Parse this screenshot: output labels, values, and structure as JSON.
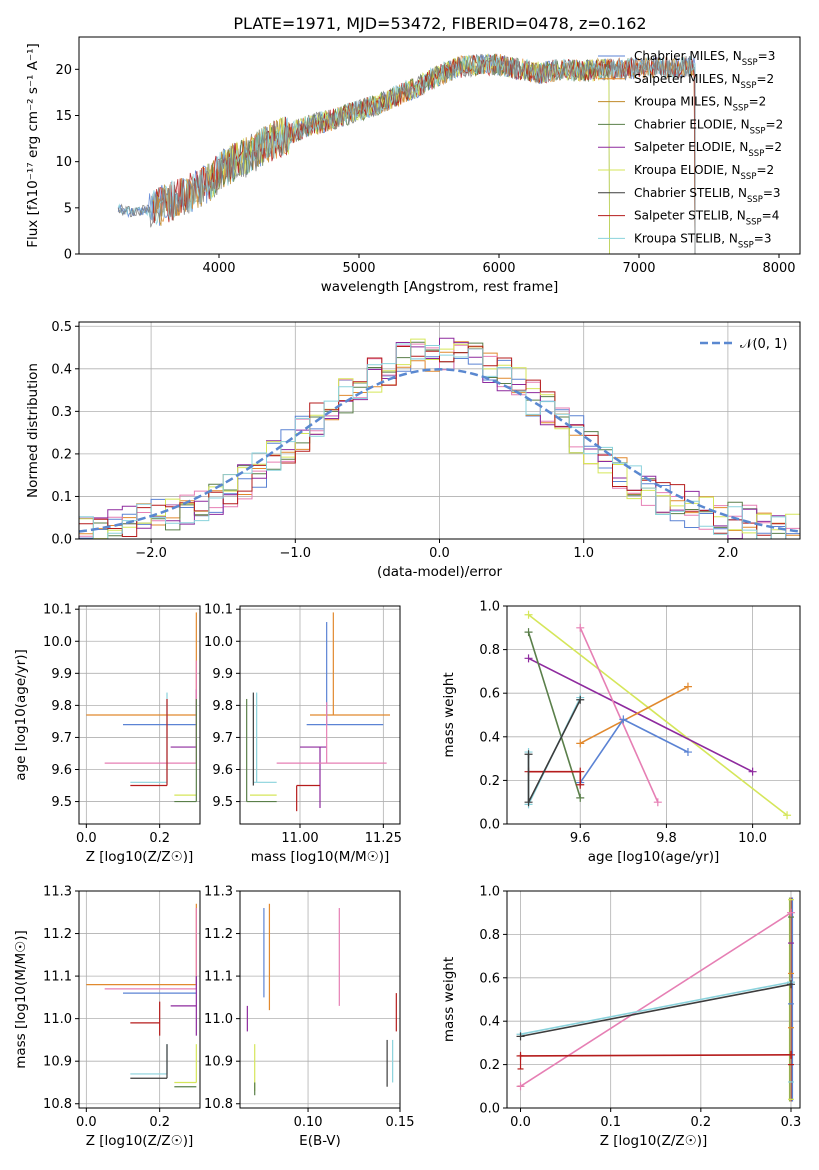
{
  "title": "PLATE=1971, MJD=53472, FIBERID=0478, z=0.162",
  "colors": {
    "Chabrier MILES": "#5b83d4",
    "Salpeter MILES": "#e1892e",
    "Kroupa MILES": "#c08a2a",
    "Chabrier ELODIE": "#5a7f4a",
    "Salpeter ELODIE": "#8e2a9e",
    "Kroupa ELODIE": "#d5e65a",
    "Chabrier STELIB": "#3c3c3c",
    "Salpeter STELIB": "#b51c1c",
    "Kroupa STELIB": "#8ad2dc",
    "pink": "#e67fb4",
    "normal": "#5a88d0",
    "gray": "#808080"
  },
  "chart_data": [
    {
      "type": "line",
      "name": "spectrum",
      "xlabel": "wavelength [Angstrom, rest frame]",
      "ylabel": "Flux [fλ10⁻¹⁷ erg cm⁻² s⁻¹ A⁻¹]",
      "xlim": [
        3000,
        8150
      ],
      "ylim": [
        0,
        23.5
      ],
      "xticks": [
        4000,
        5000,
        6000,
        7000,
        8000
      ],
      "yticks": [
        0,
        5,
        10,
        15,
        20
      ],
      "legend": [
        "Chabrier MILES, N_SSP=3",
        "Salpeter MILES, N_SSP=2",
        "Kroupa MILES, N_SSP=2",
        "Chabrier ELODIE, N_SSP=2",
        "Salpeter ELODIE, N_SSP=2",
        "Kroupa ELODIE, N_SSP=2",
        "Chabrier STELIB, N_SSP=3",
        "Salpeter STELIB, N_SSP=4",
        "Kroupa STELIB, N_SSP=3"
      ],
      "legend_position": "top-right",
      "continuum": [
        [
          3280,
          4.8
        ],
        [
          3400,
          4.5
        ],
        [
          3550,
          5.0
        ],
        [
          3700,
          6.0
        ],
        [
          3850,
          7.0
        ],
        [
          3950,
          8.0
        ],
        [
          4050,
          9.5
        ],
        [
          4200,
          10.5
        ],
        [
          4350,
          12.0
        ],
        [
          4500,
          13.0
        ],
        [
          4650,
          14.0
        ],
        [
          4800,
          14.5
        ],
        [
          4950,
          15.3
        ],
        [
          5100,
          16.0
        ],
        [
          5250,
          17.0
        ],
        [
          5400,
          18.0
        ],
        [
          5550,
          19.2
        ],
        [
          5700,
          20.2
        ],
        [
          5850,
          20.5
        ],
        [
          6000,
          20.5
        ],
        [
          6150,
          20.0
        ],
        [
          6300,
          19.6
        ],
        [
          6450,
          20.0
        ],
        [
          6600,
          19.8
        ],
        [
          6750,
          20.0
        ],
        [
          6900,
          20.0
        ],
        [
          7050,
          20.3
        ],
        [
          7200,
          20.2
        ],
        [
          7350,
          20.3
        ]
      ]
    },
    {
      "type": "bar",
      "name": "residual histogram",
      "xlabel": "(data-model)/error",
      "ylabel": "Normed distribution",
      "xlim": [
        -2.5,
        2.5
      ],
      "ylim": [
        0,
        0.51
      ],
      "xticks": [
        -2,
        -1,
        0,
        1,
        2
      ],
      "yticks": [
        0.0,
        0.1,
        0.2,
        0.3,
        0.4,
        0.5
      ],
      "legend": [
        "𝒩(0, 1)"
      ],
      "legend_position": "top-right",
      "bin_width": 0.1,
      "bin_start": -2.5,
      "series_colors": [
        "Chabrier MILES",
        "Salpeter MILES",
        "pink",
        "Chabrier ELODIE",
        "Salpeter ELODIE",
        "Kroupa ELODIE",
        "Salpeter STELIB",
        "Kroupa STELIB"
      ]
    },
    {
      "type": "scatter",
      "name": "age vs Z",
      "xlabel": "Z [log10(Z/Z☉)]",
      "ylabel": "age [log10(age/yr)]",
      "xlim": [
        -0.02,
        0.31
      ],
      "ylim": [
        9.43,
        10.11
      ],
      "xticks": [
        0.0,
        0.2
      ],
      "yticks": [
        9.5,
        9.6,
        9.7,
        9.8,
        9.9,
        10.0,
        10.1
      ],
      "points": [
        {
          "c": "Salpeter MILES",
          "x": 0.3,
          "y": 9.77,
          "xl": 0.0,
          "yl": 9.77,
          "yh": 10.09
        },
        {
          "c": "Chabrier MILES",
          "x": 0.3,
          "y": 9.74,
          "xl": 0.1,
          "yl": 9.74,
          "yh": 9.74
        },
        {
          "c": "Salpeter ELODIE",
          "x": 0.3,
          "y": 9.67,
          "xl": 0.23,
          "yl": 9.67,
          "yh": 9.85
        },
        {
          "c": "pink",
          "x": 0.3,
          "y": 9.62,
          "xl": 0.05,
          "yl": 9.62,
          "yh": 9.94
        },
        {
          "c": "Kroupa STELIB",
          "x": 0.22,
          "y": 9.56,
          "xl": 0.12,
          "yl": 9.56,
          "yh": 9.84
        },
        {
          "c": "Salpeter STELIB",
          "x": 0.22,
          "y": 9.55,
          "xl": 0.12,
          "yl": 9.55,
          "yh": 9.82
        },
        {
          "c": "Kroupa ELODIE",
          "x": 0.3,
          "y": 9.52,
          "xl": 0.24,
          "yl": 9.52,
          "yh": 9.52
        },
        {
          "c": "Chabrier ELODIE",
          "x": 0.3,
          "y": 9.5,
          "xl": 0.24,
          "yl": 9.5,
          "yh": 9.82
        }
      ]
    },
    {
      "type": "scatter",
      "name": "age vs mass",
      "xlabel": "mass [log10(M/M☉)]",
      "ylabel": "",
      "xlim": [
        10.82,
        11.3
      ],
      "ylim": [
        9.43,
        10.11
      ],
      "xticks": [
        11.0,
        11.25
      ],
      "yticks": [
        9.5,
        9.6,
        9.7,
        9.8,
        9.9,
        10.0,
        10.1
      ],
      "points": [
        {
          "c": "Salpeter MILES",
          "x": 11.1,
          "y": 9.77,
          "xl": 11.03,
          "xh": 11.27,
          "yl": 9.77,
          "yh": 10.09
        },
        {
          "c": "Chabrier MILES",
          "x": 11.08,
          "y": 9.74,
          "xl": 11.02,
          "xh": 11.25,
          "yl": 9.74,
          "yh": 10.06
        },
        {
          "c": "Salpeter ELODIE",
          "x": 11.06,
          "y": 9.67,
          "xl": 11.0,
          "xh": 11.08,
          "yl": 9.48,
          "yh": 9.67
        },
        {
          "c": "pink",
          "x": 11.08,
          "y": 9.62,
          "xl": 10.93,
          "xh": 11.26,
          "yl": 9.62,
          "yh": 9.81
        },
        {
          "c": "Kroupa STELIB",
          "x": 10.87,
          "y": 9.56,
          "xl": 10.86,
          "xh": 10.93,
          "yl": 9.56,
          "yh": 9.84
        },
        {
          "c": "Salpeter STELIB",
          "x": 10.99,
          "y": 9.55,
          "xl": 10.99,
          "xh": 11.06,
          "yl": 9.47,
          "yh": 9.55
        },
        {
          "c": "Kroupa ELODIE",
          "x": 10.85,
          "y": 9.52,
          "xl": 10.85,
          "xh": 10.93,
          "yl": 9.52,
          "yh": 9.52
        },
        {
          "c": "Chabrier ELODIE",
          "x": 10.84,
          "y": 9.5,
          "xl": 10.84,
          "xh": 10.93,
          "yl": 9.5,
          "yh": 9.82
        },
        {
          "c": "Chabrier STELIB",
          "x": 10.86,
          "y": 9.84,
          "xl": 10.86,
          "xh": 10.86,
          "yl": 9.55,
          "yh": 9.84
        }
      ]
    },
    {
      "type": "line",
      "name": "mass weight vs age",
      "xlabel": "age [log10(age/yr)]",
      "ylabel": "mass weight",
      "xlim": [
        9.43,
        10.11
      ],
      "ylim": [
        0.0,
        1.0
      ],
      "xticks": [
        9.6,
        9.8,
        10.0
      ],
      "yticks": [
        0.0,
        0.2,
        0.4,
        0.6,
        0.8,
        1.0
      ],
      "series": [
        {
          "c": "Kroupa ELODIE",
          "pts": [
            [
              9.48,
              0.96
            ],
            [
              10.08,
              0.04
            ]
          ]
        },
        {
          "c": "Salpeter ELODIE",
          "pts": [
            [
              9.48,
              0.76
            ],
            [
              10.0,
              0.24
            ]
          ]
        },
        {
          "c": "Chabrier ELODIE",
          "pts": [
            [
              9.48,
              0.88
            ],
            [
              9.6,
              0.12
            ]
          ]
        },
        {
          "c": "pink",
          "pts": [
            [
              9.6,
              0.9
            ],
            [
              9.78,
              0.1
            ]
          ]
        },
        {
          "c": "Salpeter MILES",
          "pts": [
            [
              9.6,
              0.37
            ],
            [
              9.85,
              0.63
            ]
          ]
        },
        {
          "c": "Chabrier MILES",
          "pts": [
            [
              9.6,
              0.19
            ],
            [
              9.7,
              0.48
            ],
            [
              9.85,
              0.33
            ]
          ]
        },
        {
          "c": "Kroupa STELIB",
          "pts": [
            [
              9.48,
              0.33
            ],
            [
              9.48,
              0.09
            ],
            [
              9.6,
              0.58
            ]
          ]
        },
        {
          "c": "Salpeter STELIB",
          "pts": [
            [
              9.48,
              0.24
            ],
            [
              9.6,
              0.24
            ],
            [
              9.6,
              0.18
            ]
          ]
        },
        {
          "c": "Chabrier STELIB",
          "pts": [
            [
              9.48,
              0.32
            ],
            [
              9.48,
              0.1
            ],
            [
              9.6,
              0.57
            ]
          ]
        }
      ]
    },
    {
      "type": "scatter",
      "name": "mass vs Z",
      "xlabel": "Z [log10(Z/Z☉)]",
      "ylabel": "mass [log10(M/M☉)]",
      "xlim": [
        -0.02,
        0.31
      ],
      "ylim": [
        10.79,
        11.3
      ],
      "xticks": [
        0.0,
        0.2
      ],
      "yticks": [
        10.8,
        10.9,
        11.0,
        11.1,
        11.2,
        11.3
      ],
      "points": [
        {
          "c": "Salpeter MILES",
          "x": 0.3,
          "y": 11.08,
          "xl": 0.0,
          "yl": 11.08,
          "yh": 11.27
        },
        {
          "c": "pink",
          "x": 0.3,
          "y": 11.07,
          "xl": 0.05,
          "yl": 11.07,
          "yh": 11.26
        },
        {
          "c": "Chabrier MILES",
          "x": 0.3,
          "y": 11.06,
          "xl": 0.1,
          "yl": 11.06,
          "yh": 11.06
        },
        {
          "c": "Salpeter ELODIE",
          "x": 0.3,
          "y": 11.03,
          "xl": 0.23,
          "yl": 10.96,
          "yh": 11.1
        },
        {
          "c": "Salpeter STELIB",
          "x": 0.2,
          "y": 10.99,
          "xl": 0.12,
          "yl": 10.96,
          "yh": 11.04
        },
        {
          "c": "Kroupa STELIB",
          "x": 0.22,
          "y": 10.87,
          "xl": 0.12,
          "yl": 10.87,
          "yh": 10.94
        },
        {
          "c": "Chabrier STELIB",
          "x": 0.22,
          "y": 10.86,
          "xl": 0.12,
          "yl": 10.86,
          "yh": 10.94
        },
        {
          "c": "Kroupa ELODIE",
          "x": 0.3,
          "y": 10.85,
          "xl": 0.24,
          "yl": 10.85,
          "yh": 10.94
        },
        {
          "c": "Chabrier ELODIE",
          "x": 0.3,
          "y": 10.84,
          "xl": 0.24,
          "yl": 10.84,
          "yh": 10.84
        }
      ]
    },
    {
      "type": "scatter",
      "name": "mass vs E(B-V)",
      "xlabel": "E(B-V)",
      "ylabel": "",
      "xlim": [
        0.063,
        0.15
      ],
      "ylim": [
        10.79,
        11.3
      ],
      "xticks": [
        0.05,
        0.1,
        0.15
      ],
      "yticks": [
        10.8,
        10.9,
        11.0,
        11.1,
        11.2,
        11.3
      ],
      "points": [
        {
          "c": "Chabrier MILES",
          "x": 0.076,
          "yl": 11.05,
          "yh": 11.26
        },
        {
          "c": "Salpeter MILES",
          "x": 0.079,
          "yl": 11.02,
          "yh": 11.27
        },
        {
          "c": "pink",
          "x": 0.117,
          "yl": 11.03,
          "yh": 11.26
        },
        {
          "c": "Salpeter ELODIE",
          "x": 0.067,
          "yl": 10.97,
          "yh": 11.03
        },
        {
          "c": "Kroupa ELODIE",
          "x": 0.071,
          "yl": 10.83,
          "yh": 10.94
        },
        {
          "c": "Chabrier ELODIE",
          "x": 0.071,
          "yl": 10.82,
          "yh": 10.85
        },
        {
          "c": "Chabrier STELIB",
          "x": 0.143,
          "yl": 10.84,
          "yh": 10.95
        },
        {
          "c": "Kroupa STELIB",
          "x": 0.146,
          "yl": 10.85,
          "yh": 10.95
        },
        {
          "c": "Salpeter STELIB",
          "x": 0.148,
          "yl": 10.97,
          "yh": 11.06
        }
      ]
    },
    {
      "type": "line",
      "name": "mass weight vs Z",
      "xlabel": "Z [log10(Z/Z☉)]",
      "ylabel": "mass weight",
      "xlim": [
        -0.015,
        0.31
      ],
      "ylim": [
        0.0,
        1.0
      ],
      "xticks": [
        0.0,
        0.1,
        0.2,
        0.3
      ],
      "yticks": [
        0.0,
        0.2,
        0.4,
        0.6,
        0.8,
        1.0
      ],
      "series": [
        {
          "c": "pink",
          "pts": [
            [
              0.0,
              0.1
            ],
            [
              0.3,
              0.9
            ]
          ]
        },
        {
          "c": "Kroupa STELIB",
          "pts": [
            [
              0.0,
              0.34
            ],
            [
              0.3,
              0.58
            ]
          ]
        },
        {
          "c": "Chabrier STELIB",
          "pts": [
            [
              0.0,
              0.33
            ],
            [
              0.3,
              0.57
            ]
          ]
        },
        {
          "c": "Salpeter STELIB",
          "pts": [
            [
              0.0,
              0.24
            ],
            [
              0.3,
              0.245
            ]
          ]
        }
      ],
      "vert_markers_z": [
        0.0,
        0.3
      ]
    }
  ]
}
